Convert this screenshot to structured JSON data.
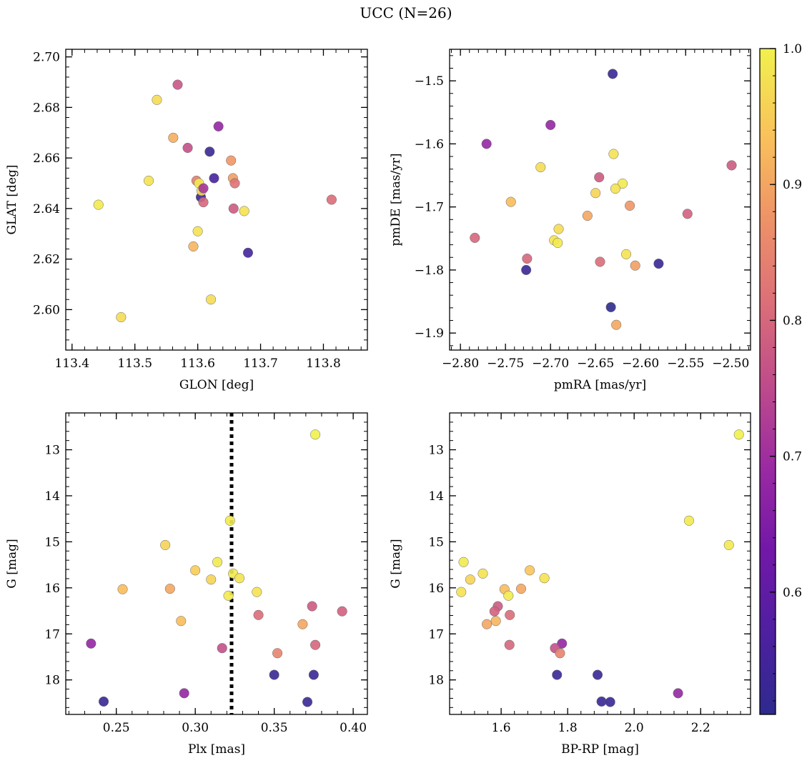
{
  "figure": {
    "title": "UCC (N=26)"
  },
  "colorbar": {
    "colormap": "plasma",
    "range": [
      0.51,
      1.0
    ],
    "ticks": [
      0.6,
      0.7,
      0.8,
      0.9,
      1.0
    ],
    "tick_labels": [
      "0.6",
      "0.7",
      "0.8",
      "0.9",
      "1.0"
    ]
  },
  "chart_data": [
    {
      "type": "scatter",
      "xlabel": "GLON [deg]",
      "ylabel": "GLAT [deg]",
      "xlim": [
        113.39,
        113.87
      ],
      "ylim": [
        2.584,
        2.703
      ],
      "xticks": [
        113.4,
        113.5,
        113.6,
        113.7,
        113.8
      ],
      "xtick_labels": [
        "113.4",
        "113.5",
        "113.6",
        "113.7",
        "113.8"
      ],
      "yticks": [
        2.6,
        2.62,
        2.64,
        2.66,
        2.68,
        2.7
      ],
      "ytick_labels": [
        "2.60",
        "2.62",
        "2.64",
        "2.66",
        "2.68",
        "2.70"
      ],
      "invert_y": false,
      "points": [
        {
          "x": 113.442,
          "y": 2.6415,
          "c": 0.99
        },
        {
          "x": 113.478,
          "y": 2.597,
          "c": 0.97
        },
        {
          "x": 113.522,
          "y": 2.651,
          "c": 0.98
        },
        {
          "x": 113.535,
          "y": 2.683,
          "c": 0.97
        },
        {
          "x": 113.561,
          "y": 2.668,
          "c": 0.91
        },
        {
          "x": 113.568,
          "y": 2.689,
          "c": 0.77
        },
        {
          "x": 113.584,
          "y": 2.664,
          "c": 0.76
        },
        {
          "x": 113.593,
          "y": 2.625,
          "c": 0.92
        },
        {
          "x": 113.598,
          "y": 2.651,
          "c": 0.84
        },
        {
          "x": 113.6,
          "y": 2.631,
          "c": 0.98
        },
        {
          "x": 113.602,
          "y": 2.65,
          "c": 0.99
        },
        {
          "x": 113.605,
          "y": 2.6445,
          "c": 0.53
        },
        {
          "x": 113.606,
          "y": 2.647,
          "c": 0.97
        },
        {
          "x": 113.609,
          "y": 2.648,
          "c": 0.71
        },
        {
          "x": 113.609,
          "y": 2.6425,
          "c": 0.8
        },
        {
          "x": 113.619,
          "y": 2.6625,
          "c": 0.53
        },
        {
          "x": 113.621,
          "y": 2.604,
          "c": 0.97
        },
        {
          "x": 113.626,
          "y": 2.652,
          "c": 0.56
        },
        {
          "x": 113.633,
          "y": 2.6725,
          "c": 0.68
        },
        {
          "x": 113.653,
          "y": 2.659,
          "c": 0.88
        },
        {
          "x": 113.656,
          "y": 2.652,
          "c": 0.89
        },
        {
          "x": 113.657,
          "y": 2.64,
          "c": 0.78
        },
        {
          "x": 113.659,
          "y": 2.65,
          "c": 0.82
        },
        {
          "x": 113.674,
          "y": 2.639,
          "c": 0.98
        },
        {
          "x": 113.68,
          "y": 2.6225,
          "c": 0.55
        },
        {
          "x": 113.813,
          "y": 2.6435,
          "c": 0.81
        }
      ]
    },
    {
      "type": "scatter",
      "xlabel": "pmRA [mas/yr]",
      "ylabel": "pmDE [mas/yr]",
      "xlim": [
        -2.812,
        -2.478
      ],
      "ylim": [
        -1.927,
        -1.45
      ],
      "xticks": [
        -2.8,
        -2.75,
        -2.7,
        -2.65,
        -2.6,
        -2.55,
        -2.5
      ],
      "xtick_labels": [
        "−2.80",
        "−2.75",
        "−2.70",
        "−2.65",
        "−2.60",
        "−2.55",
        "−2.50"
      ],
      "yticks": [
        -1.9,
        -1.8,
        -1.7,
        -1.6,
        -1.5
      ],
      "ytick_labels": [
        "−1.9",
        "−1.8",
        "−1.7",
        "−1.6",
        "−1.5"
      ],
      "invert_y": false,
      "points": [
        {
          "x": -2.631,
          "y": -1.489,
          "c": 0.53
        },
        {
          "x": -2.7,
          "y": -1.57,
          "c": 0.68
        },
        {
          "x": -2.771,
          "y": -1.6,
          "c": 0.68
        },
        {
          "x": -2.63,
          "y": -1.616,
          "c": 0.98
        },
        {
          "x": -2.499,
          "y": -1.634,
          "c": 0.78
        },
        {
          "x": -2.711,
          "y": -1.637,
          "c": 0.97
        },
        {
          "x": -2.646,
          "y": -1.653,
          "c": 0.78
        },
        {
          "x": -2.62,
          "y": -1.663,
          "c": 0.99
        },
        {
          "x": -2.628,
          "y": -1.671,
          "c": 0.98
        },
        {
          "x": -2.65,
          "y": -1.678,
          "c": 0.96
        },
        {
          "x": -2.744,
          "y": -1.692,
          "c": 0.93
        },
        {
          "x": -2.612,
          "y": -1.698,
          "c": 0.88
        },
        {
          "x": -2.548,
          "y": -1.711,
          "c": 0.79
        },
        {
          "x": -2.659,
          "y": -1.714,
          "c": 0.9
        },
        {
          "x": -2.691,
          "y": -1.735,
          "c": 0.97
        },
        {
          "x": -2.784,
          "y": -1.749,
          "c": 0.8
        },
        {
          "x": -2.696,
          "y": -1.753,
          "c": 0.98
        },
        {
          "x": -2.692,
          "y": -1.757,
          "c": 0.99
        },
        {
          "x": -2.616,
          "y": -1.775,
          "c": 0.98
        },
        {
          "x": -2.726,
          "y": -1.782,
          "c": 0.8
        },
        {
          "x": -2.645,
          "y": -1.787,
          "c": 0.81
        },
        {
          "x": -2.58,
          "y": -1.79,
          "c": 0.53
        },
        {
          "x": -2.606,
          "y": -1.793,
          "c": 0.89
        },
        {
          "x": -2.727,
          "y": -1.8,
          "c": 0.53
        },
        {
          "x": -2.633,
          "y": -1.859,
          "c": 0.51
        },
        {
          "x": -2.627,
          "y": -1.887,
          "c": 0.9
        }
      ]
    },
    {
      "type": "scatter",
      "xlabel": "Plx [mas]",
      "ylabel": "G [mag]",
      "xlim": [
        0.218,
        0.409
      ],
      "ylim": [
        12.2,
        18.75
      ],
      "xticks": [
        0.25,
        0.3,
        0.35,
        0.4
      ],
      "xtick_labels": [
        "0.25",
        "0.30",
        "0.35",
        "0.40"
      ],
      "yticks": [
        13,
        14,
        15,
        16,
        17,
        18
      ],
      "ytick_labels": [
        "13",
        "14",
        "15",
        "16",
        "17",
        "18"
      ],
      "invert_y": true,
      "vline": {
        "x": 0.323,
        "style": "dotted",
        "color": "#000000"
      },
      "points": [
        {
          "x": 0.376,
          "y": 12.67,
          "c": 1.0
        },
        {
          "x": 0.322,
          "y": 14.54,
          "c": 0.99
        },
        {
          "x": 0.281,
          "y": 15.07,
          "c": 0.96
        },
        {
          "x": 0.314,
          "y": 15.44,
          "c": 0.99
        },
        {
          "x": 0.3,
          "y": 15.62,
          "c": 0.95
        },
        {
          "x": 0.324,
          "y": 15.69,
          "c": 0.99
        },
        {
          "x": 0.328,
          "y": 15.79,
          "c": 0.98
        },
        {
          "x": 0.31,
          "y": 15.82,
          "c": 0.96
        },
        {
          "x": 0.254,
          "y": 16.03,
          "c": 0.93
        },
        {
          "x": 0.284,
          "y": 16.02,
          "c": 0.9
        },
        {
          "x": 0.339,
          "y": 16.09,
          "c": 0.98
        },
        {
          "x": 0.321,
          "y": 16.17,
          "c": 0.99
        },
        {
          "x": 0.374,
          "y": 16.4,
          "c": 0.78
        },
        {
          "x": 0.393,
          "y": 16.51,
          "c": 0.79
        },
        {
          "x": 0.34,
          "y": 16.59,
          "c": 0.81
        },
        {
          "x": 0.291,
          "y": 16.72,
          "c": 0.93
        },
        {
          "x": 0.368,
          "y": 16.79,
          "c": 0.9
        },
        {
          "x": 0.234,
          "y": 17.21,
          "c": 0.68
        },
        {
          "x": 0.376,
          "y": 17.24,
          "c": 0.8
        },
        {
          "x": 0.317,
          "y": 17.31,
          "c": 0.76
        },
        {
          "x": 0.352,
          "y": 17.42,
          "c": 0.85
        },
        {
          "x": 0.35,
          "y": 17.89,
          "c": 0.53
        },
        {
          "x": 0.375,
          "y": 17.89,
          "c": 0.53
        },
        {
          "x": 0.293,
          "y": 18.29,
          "c": 0.68
        },
        {
          "x": 0.242,
          "y": 18.47,
          "c": 0.53
        },
        {
          "x": 0.371,
          "y": 18.48,
          "c": 0.53
        }
      ]
    },
    {
      "type": "scatter",
      "xlabel": "BP-RP [mag]",
      "ylabel": "G [mag]",
      "xlim": [
        1.445,
        2.35
      ],
      "ylim": [
        12.2,
        18.75
      ],
      "xticks": [
        1.6,
        1.8,
        2.0,
        2.2
      ],
      "xtick_labels": [
        "1.6",
        "1.8",
        "2.0",
        "2.2"
      ],
      "yticks": [
        13,
        14,
        15,
        16,
        17,
        18
      ],
      "ytick_labels": [
        "13",
        "14",
        "15",
        "16",
        "17",
        "18"
      ],
      "invert_y": true,
      "points": [
        {
          "x": 2.315,
          "y": 12.67,
          "c": 1.0
        },
        {
          "x": 2.165,
          "y": 14.54,
          "c": 0.99
        },
        {
          "x": 2.285,
          "y": 15.07,
          "c": 0.99
        },
        {
          "x": 1.487,
          "y": 15.44,
          "c": 0.99
        },
        {
          "x": 1.686,
          "y": 15.62,
          "c": 0.94
        },
        {
          "x": 1.545,
          "y": 15.69,
          "c": 0.98
        },
        {
          "x": 1.73,
          "y": 15.79,
          "c": 0.98
        },
        {
          "x": 1.507,
          "y": 15.82,
          "c": 0.96
        },
        {
          "x": 1.61,
          "y": 16.03,
          "c": 0.93
        },
        {
          "x": 1.66,
          "y": 16.02,
          "c": 0.9
        },
        {
          "x": 1.48,
          "y": 16.09,
          "c": 0.98
        },
        {
          "x": 1.622,
          "y": 16.17,
          "c": 0.99
        },
        {
          "x": 1.59,
          "y": 16.4,
          "c": 0.78
        },
        {
          "x": 1.58,
          "y": 16.51,
          "c": 0.79
        },
        {
          "x": 1.626,
          "y": 16.59,
          "c": 0.81
        },
        {
          "x": 1.584,
          "y": 16.72,
          "c": 0.92
        },
        {
          "x": 1.557,
          "y": 16.79,
          "c": 0.9
        },
        {
          "x": 1.783,
          "y": 17.21,
          "c": 0.68
        },
        {
          "x": 1.625,
          "y": 17.24,
          "c": 0.8
        },
        {
          "x": 1.762,
          "y": 17.31,
          "c": 0.76
        },
        {
          "x": 1.777,
          "y": 17.42,
          "c": 0.85
        },
        {
          "x": 1.768,
          "y": 17.89,
          "c": 0.53
        },
        {
          "x": 1.89,
          "y": 17.89,
          "c": 0.53
        },
        {
          "x": 2.132,
          "y": 18.29,
          "c": 0.68
        },
        {
          "x": 1.902,
          "y": 18.47,
          "c": 0.53
        },
        {
          "x": 1.928,
          "y": 18.48,
          "c": 0.53
        }
      ]
    }
  ]
}
